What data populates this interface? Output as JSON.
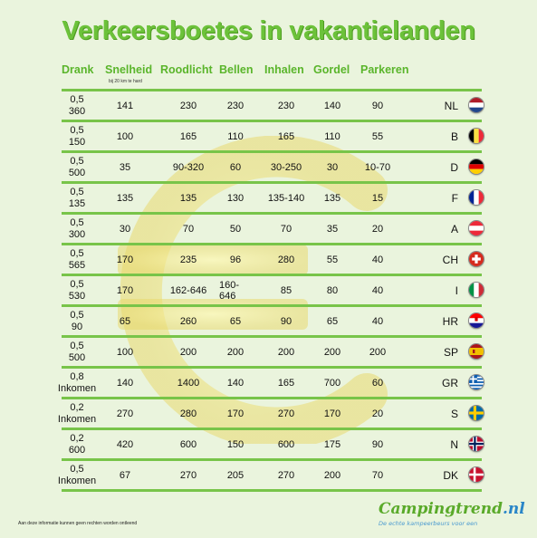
{
  "title": "Verkeersboetes in vakantielanden",
  "headers": {
    "drank": "Drank",
    "snelheid": "Snelheid",
    "snelheid_sub": "bij 20 km te hard",
    "roodlicht": "Roodlicht",
    "bellen": "Bellen",
    "inhalen": "Inhalen",
    "gordel": "Gordel",
    "parkeren": "Parkeren"
  },
  "rows": [
    {
      "drank1": "0,5",
      "drank2": "360",
      "snelheid": "141",
      "roodlicht": "230",
      "bellen": "230",
      "inhalen": "230",
      "gordel": "140",
      "parkeren": "90",
      "code": "NL",
      "flag": "netherlands-flag-icon"
    },
    {
      "drank1": "0,5",
      "drank2": "150",
      "snelheid": "100",
      "roodlicht": "165",
      "bellen": "110",
      "inhalen": "165",
      "gordel": "110",
      "parkeren": "55",
      "code": "B",
      "flag": "belgium-flag-icon"
    },
    {
      "drank1": "0,5",
      "drank2": "500",
      "snelheid": "35",
      "roodlicht": "90-320",
      "bellen": "60",
      "inhalen": "30-250",
      "gordel": "30",
      "parkeren": "10-70",
      "code": "D",
      "flag": "germany-flag-icon"
    },
    {
      "drank1": "0,5",
      "drank2": "135",
      "snelheid": "135",
      "roodlicht": "135",
      "bellen": "130",
      "inhalen": "135-140",
      "gordel": "135",
      "parkeren": "15",
      "code": "F",
      "flag": "france-flag-icon"
    },
    {
      "drank1": "0,5",
      "drank2": "300",
      "snelheid": "30",
      "roodlicht": "70",
      "bellen": "50",
      "inhalen": "70",
      "gordel": "35",
      "parkeren": "20",
      "code": "A",
      "flag": "austria-flag-icon"
    },
    {
      "drank1": "0,5",
      "drank2": "565",
      "snelheid": "170",
      "roodlicht": "235",
      "bellen": "96",
      "inhalen": "280",
      "gordel": "55",
      "parkeren": "40",
      "code": "CH",
      "flag": "switzerland-flag-icon"
    },
    {
      "drank1": "0,5",
      "drank2": "530",
      "snelheid": "170",
      "roodlicht": "162-646",
      "bellen": "160-646",
      "inhalen": "85",
      "gordel": "80",
      "parkeren": "40",
      "code": "I",
      "flag": "italy-flag-icon"
    },
    {
      "drank1": "0,5",
      "drank2": "90",
      "snelheid": "65",
      "roodlicht": "260",
      "bellen": "65",
      "inhalen": "90",
      "gordel": "65",
      "parkeren": "40",
      "code": "HR",
      "flag": "croatia-flag-icon"
    },
    {
      "drank1": "0,5",
      "drank2": "500",
      "snelheid": "100",
      "roodlicht": "200",
      "bellen": "200",
      "inhalen": "200",
      "gordel": "200",
      "parkeren": "200",
      "code": "SP",
      "flag": "spain-flag-icon"
    },
    {
      "drank1": "0,8",
      "drank2": "Inkomen",
      "snelheid": "140",
      "roodlicht": "1400",
      "bellen": "140",
      "inhalen": "165",
      "gordel": "700",
      "parkeren": "60",
      "code": "GR",
      "flag": "greece-flag-icon"
    },
    {
      "drank1": "0,2",
      "drank2": "Inkomen",
      "snelheid": "270",
      "roodlicht": "280",
      "bellen": "170",
      "inhalen": "270",
      "gordel": "170",
      "parkeren": "20",
      "code": "S",
      "flag": "sweden-flag-icon"
    },
    {
      "drank1": "0,2",
      "drank2": "600",
      "snelheid": "420",
      "roodlicht": "600",
      "bellen": "150",
      "inhalen": "600",
      "gordel": "175",
      "parkeren": "90",
      "code": "N",
      "flag": "norway-flag-icon"
    },
    {
      "drank1": "0,5",
      "drank2": "Inkomen",
      "snelheid": "67",
      "roodlicht": "270",
      "bellen": "205",
      "inhalen": "270",
      "gordel": "200",
      "parkeren": "70",
      "code": "DK",
      "flag": "denmark-flag-icon"
    }
  ],
  "footer_note": "Aan deze informatie kunnen geen rechten worden ontleend",
  "brand": {
    "name": "Campingtrend",
    "tld": ".nl",
    "tagline": "De echte kampeerbeurs voor een"
  }
}
